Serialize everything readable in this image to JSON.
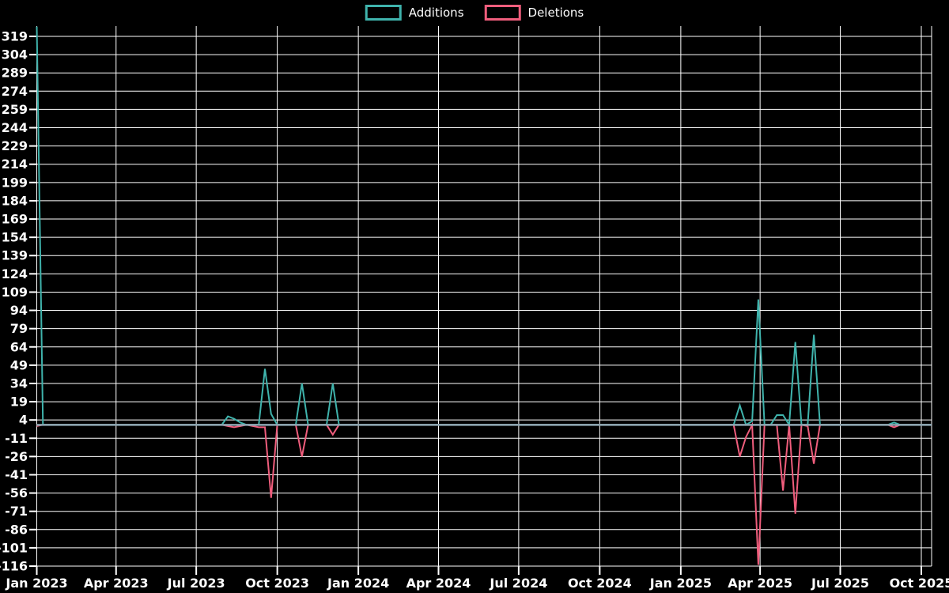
{
  "legend": {
    "items": [
      {
        "label": "Additions",
        "color": "#3FB3AC"
      },
      {
        "label": "Deletions",
        "color": "#EF5D7C"
      }
    ],
    "position": "top-center"
  },
  "colors": {
    "background": "#000000",
    "grid": "#FFFFFF",
    "text": "#FFFFFF",
    "additions": "#3FB3AC",
    "deletions": "#EF5D7C",
    "zero_baseline": "#8FA7B3"
  },
  "chart_data": {
    "type": "line",
    "title": "",
    "xlabel": "",
    "ylabel": "",
    "grid": true,
    "legend_position": "top-center",
    "y_axis": {
      "tick_values": [
        319,
        304,
        289,
        274,
        259,
        244,
        229,
        214,
        199,
        184,
        169,
        154,
        139,
        124,
        109,
        94,
        79,
        64,
        49,
        34,
        19,
        4,
        -11,
        -26,
        -41,
        -56,
        -71,
        -86,
        -101,
        -116
      ],
      "ylim": [
        -116,
        327
      ]
    },
    "x_axis": {
      "ticks": [
        {
          "label": "Jan 2023",
          "date": "2023-01-01"
        },
        {
          "label": "Apr 2023",
          "date": "2023-04-01"
        },
        {
          "label": "Jul 2023",
          "date": "2023-07-01"
        },
        {
          "label": "Oct 2023",
          "date": "2023-10-01"
        },
        {
          "label": "Jan 2024",
          "date": "2024-01-01"
        },
        {
          "label": "Apr 2024",
          "date": "2024-04-01"
        },
        {
          "label": "Jul 2024",
          "date": "2024-07-01"
        },
        {
          "label": "Oct 2024",
          "date": "2024-10-01"
        },
        {
          "label": "Jan 2025",
          "date": "2025-01-01"
        },
        {
          "label": "Apr 2025",
          "date": "2025-04-01"
        },
        {
          "label": "Jul 2025",
          "date": "2025-07-01"
        },
        {
          "label": "Oct 2025",
          "date": "2025-10-01"
        }
      ],
      "range": [
        "2023-01-01",
        "2025-10-12"
      ]
    },
    "series_names": [
      "Additions",
      "Deletions"
    ],
    "weeks": [
      {
        "date": "2023-01-01",
        "additions": 327,
        "deletions": -1
      },
      {
        "date": "2023-01-08",
        "additions": 0,
        "deletions": 0
      },
      {
        "date": "2023-07-30",
        "additions": 0,
        "deletions": 0
      },
      {
        "date": "2023-08-06",
        "additions": 7,
        "deletions": -1
      },
      {
        "date": "2023-08-13",
        "additions": 5,
        "deletions": -2
      },
      {
        "date": "2023-08-20",
        "additions": 2,
        "deletions": -1
      },
      {
        "date": "2023-08-27",
        "additions": 0,
        "deletions": 0
      },
      {
        "date": "2023-09-10",
        "additions": 0,
        "deletions": -2
      },
      {
        "date": "2023-09-17",
        "additions": 46,
        "deletions": -2
      },
      {
        "date": "2023-09-24",
        "additions": 9,
        "deletions": -60
      },
      {
        "date": "2023-10-01",
        "additions": 0,
        "deletions": 0
      },
      {
        "date": "2023-10-22",
        "additions": 0,
        "deletions": 0
      },
      {
        "date": "2023-10-29",
        "additions": 34,
        "deletions": -26
      },
      {
        "date": "2023-11-05",
        "additions": 0,
        "deletions": 0
      },
      {
        "date": "2023-11-26",
        "additions": 0,
        "deletions": 0
      },
      {
        "date": "2023-12-03",
        "additions": 34,
        "deletions": -8
      },
      {
        "date": "2023-12-10",
        "additions": 0,
        "deletions": 0
      },
      {
        "date": "2025-03-02",
        "additions": 0,
        "deletions": 0
      },
      {
        "date": "2025-03-09",
        "additions": 16,
        "deletions": -26
      },
      {
        "date": "2025-03-16",
        "additions": 0,
        "deletions": -10
      },
      {
        "date": "2025-03-23",
        "additions": 3,
        "deletions": 0
      },
      {
        "date": "2025-03-30",
        "additions": 103,
        "deletions": -115
      },
      {
        "date": "2025-04-06",
        "additions": 0,
        "deletions": 0
      },
      {
        "date": "2025-04-13",
        "additions": 0,
        "deletions": 0
      },
      {
        "date": "2025-04-20",
        "additions": 8,
        "deletions": 0
      },
      {
        "date": "2025-04-27",
        "additions": 8,
        "deletions": -54
      },
      {
        "date": "2025-05-04",
        "additions": 0,
        "deletions": 0
      },
      {
        "date": "2025-05-11",
        "additions": 68,
        "deletions": -73
      },
      {
        "date": "2025-05-18",
        "additions": 0,
        "deletions": 0
      },
      {
        "date": "2025-05-25",
        "additions": 0,
        "deletions": -1
      },
      {
        "date": "2025-06-01",
        "additions": 74,
        "deletions": -32
      },
      {
        "date": "2025-06-08",
        "additions": 0,
        "deletions": 0
      },
      {
        "date": "2025-08-24",
        "additions": 0,
        "deletions": 0
      },
      {
        "date": "2025-08-31",
        "additions": 2,
        "deletions": -2
      },
      {
        "date": "2025-09-07",
        "additions": 0,
        "deletions": 0
      },
      {
        "date": "2025-10-12",
        "additions": 0,
        "deletions": 0
      }
    ]
  }
}
